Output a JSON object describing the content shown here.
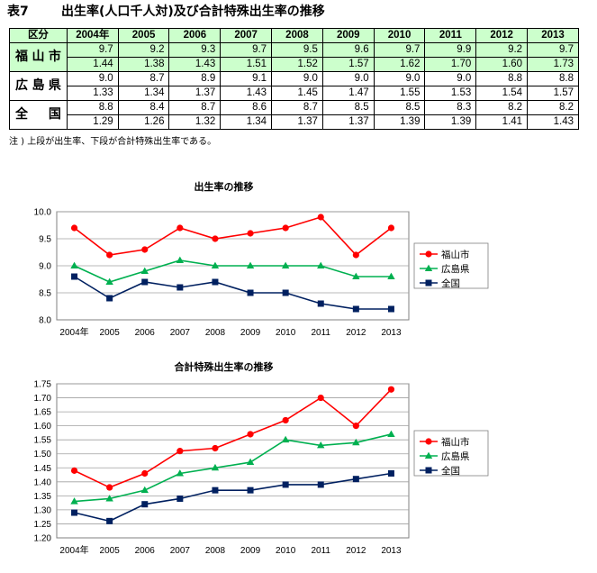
{
  "title": {
    "number": "表7",
    "text": "出生率(人口千人対)及び合計特殊出生率の推移"
  },
  "table": {
    "header": [
      "区分",
      "2004年",
      "2005",
      "2006",
      "2007",
      "2008",
      "2009",
      "2010",
      "2011",
      "2012",
      "2013"
    ],
    "rows": [
      {
        "region": "福山市",
        "birth_rate": [
          "9.7",
          "9.2",
          "9.3",
          "9.7",
          "9.5",
          "9.6",
          "9.7",
          "9.9",
          "9.2",
          "9.7"
        ],
        "tfr": [
          "1.44",
          "1.38",
          "1.43",
          "1.51",
          "1.52",
          "1.57",
          "1.62",
          "1.70",
          "1.60",
          "1.73"
        ]
      },
      {
        "region": "広島県",
        "birth_rate": [
          "9.0",
          "8.7",
          "8.9",
          "9.1",
          "9.0",
          "9.0",
          "9.0",
          "9.0",
          "8.8",
          "8.8"
        ],
        "tfr": [
          "1.33",
          "1.34",
          "1.37",
          "1.43",
          "1.45",
          "1.47",
          "1.55",
          "1.53",
          "1.54",
          "1.57"
        ]
      },
      {
        "region": "全国",
        "birth_rate": [
          "8.8",
          "8.4",
          "8.7",
          "8.6",
          "8.7",
          "8.5",
          "8.5",
          "8.3",
          "8.2",
          "8.2"
        ],
        "tfr": [
          "1.29",
          "1.26",
          "1.32",
          "1.34",
          "1.37",
          "1.37",
          "1.39",
          "1.39",
          "1.41",
          "1.43"
        ]
      }
    ]
  },
  "note": "注 ) 上段が出生率、下段が合計特殊出生率である。",
  "colors": {
    "fukuyama": "#ff0000",
    "hiroshima": "#00b050",
    "national": "#002060",
    "table_highlight": "#ccffcc"
  },
  "chart_data": [
    {
      "type": "line",
      "title": "出生率の推移",
      "categories": [
        "2004年",
        "2005",
        "2006",
        "2007",
        "2008",
        "2009",
        "2010",
        "2011",
        "2012",
        "2013"
      ],
      "ylim": [
        8.0,
        10.0
      ],
      "yticks": [
        "8.0",
        "8.5",
        "9.0",
        "9.5",
        "10.0"
      ],
      "grid": true,
      "legend": "right",
      "series": [
        {
          "name": "福山市",
          "marker": "circle",
          "color": "#ff0000",
          "values": [
            9.7,
            9.2,
            9.3,
            9.7,
            9.5,
            9.6,
            9.7,
            9.9,
            9.2,
            9.7
          ]
        },
        {
          "name": "広島県",
          "marker": "triangle",
          "color": "#00b050",
          "values": [
            9.0,
            8.7,
            8.9,
            9.1,
            9.0,
            9.0,
            9.0,
            9.0,
            8.8,
            8.8
          ]
        },
        {
          "name": "全国",
          "marker": "square",
          "color": "#002060",
          "values": [
            8.8,
            8.4,
            8.7,
            8.6,
            8.7,
            8.5,
            8.5,
            8.3,
            8.2,
            8.2
          ]
        }
      ]
    },
    {
      "type": "line",
      "title": "合計特殊出生率の推移",
      "categories": [
        "2004年",
        "2005",
        "2006",
        "2007",
        "2008",
        "2009",
        "2010",
        "2011",
        "2012",
        "2013"
      ],
      "ylim": [
        1.2,
        1.75
      ],
      "yticks": [
        "1.20",
        "1.25",
        "1.30",
        "1.35",
        "1.40",
        "1.45",
        "1.50",
        "1.55",
        "1.60",
        "1.65",
        "1.70",
        "1.75"
      ],
      "grid": true,
      "legend": "right",
      "series": [
        {
          "name": "福山市",
          "marker": "circle",
          "color": "#ff0000",
          "values": [
            1.44,
            1.38,
            1.43,
            1.51,
            1.52,
            1.57,
            1.62,
            1.7,
            1.6,
            1.73
          ]
        },
        {
          "name": "広島県",
          "marker": "triangle",
          "color": "#00b050",
          "values": [
            1.33,
            1.34,
            1.37,
            1.43,
            1.45,
            1.47,
            1.55,
            1.53,
            1.54,
            1.57
          ]
        },
        {
          "name": "全国",
          "marker": "square",
          "color": "#002060",
          "values": [
            1.29,
            1.26,
            1.32,
            1.34,
            1.37,
            1.37,
            1.39,
            1.39,
            1.41,
            1.43
          ]
        }
      ]
    }
  ]
}
